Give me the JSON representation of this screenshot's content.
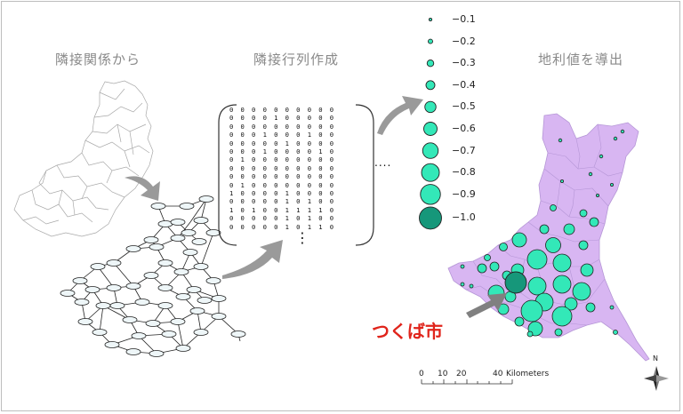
{
  "headings": {
    "step1": "隣接関係から",
    "step2": "隣接行列作成",
    "step3": "地利値を導出"
  },
  "matrix": {
    "rows": [
      "0000000000",
      "0000100000",
      "0000000000",
      "0001000100",
      "0000010000",
      "0001000010",
      "0100000000",
      "0000000000",
      "0000000000",
      "0100000000",
      "1000010000",
      "0000010100",
      "1010011110",
      "0000010100",
      "0000010110"
    ],
    "col_ellipsis": "....",
    "row_ellipsis": "⋮"
  },
  "legend": {
    "items": [
      {
        "label": "−0.1",
        "value": -0.1
      },
      {
        "label": "−0.2",
        "value": -0.2
      },
      {
        "label": "−0.3",
        "value": -0.3
      },
      {
        "label": "−0.4",
        "value": -0.4
      },
      {
        "label": "−0.5",
        "value": -0.5
      },
      {
        "label": "−0.6",
        "value": -0.6
      },
      {
        "label": "−0.7",
        "value": -0.7
      },
      {
        "label": "−0.8",
        "value": -0.8
      },
      {
        "label": "−0.9",
        "value": -0.9
      },
      {
        "label": "−1.0",
        "value": -1.0
      }
    ],
    "fill_color": "#33e8b8",
    "highlight_color": "#16977a"
  },
  "map": {
    "highlight_label": "つくば市",
    "region_color": "#d8b6f2"
  },
  "scale_bar": {
    "ticks": [
      "0",
      "10",
      "20",
      "40"
    ],
    "unit": "Kilometers"
  },
  "north": {
    "label": "N"
  }
}
